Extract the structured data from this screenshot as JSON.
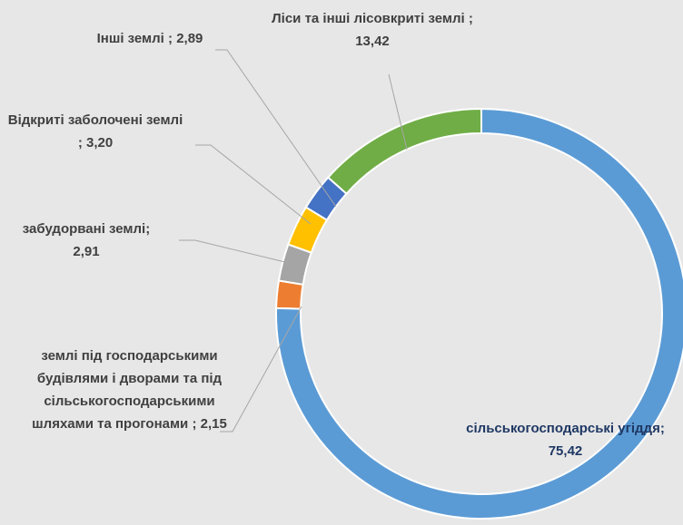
{
  "chart_data": {
    "type": "donut",
    "categories": [
      "сільськогосподарські угіддя;",
      "землі під господарськими будівлями і дворами та під сільськогосподарськими шляхами та прогонами ;",
      "забудорвані землі;",
      "Відкриті заболочені землі ;",
      "Інші землі ;",
      "Ліси та інші лісовкриті землі ;"
    ],
    "values": [
      75.42,
      2.15,
      2.91,
      3.2,
      2.89,
      13.42
    ],
    "value_labels": [
      "75,42",
      "2,15",
      "2,91",
      "3,20",
      "2,89",
      "13,42"
    ],
    "colors": [
      "#5b9bd5",
      "#ed7d31",
      "#a5a5a5",
      "#ffc000",
      "#4472c4",
      "#70ad47"
    ]
  }
}
